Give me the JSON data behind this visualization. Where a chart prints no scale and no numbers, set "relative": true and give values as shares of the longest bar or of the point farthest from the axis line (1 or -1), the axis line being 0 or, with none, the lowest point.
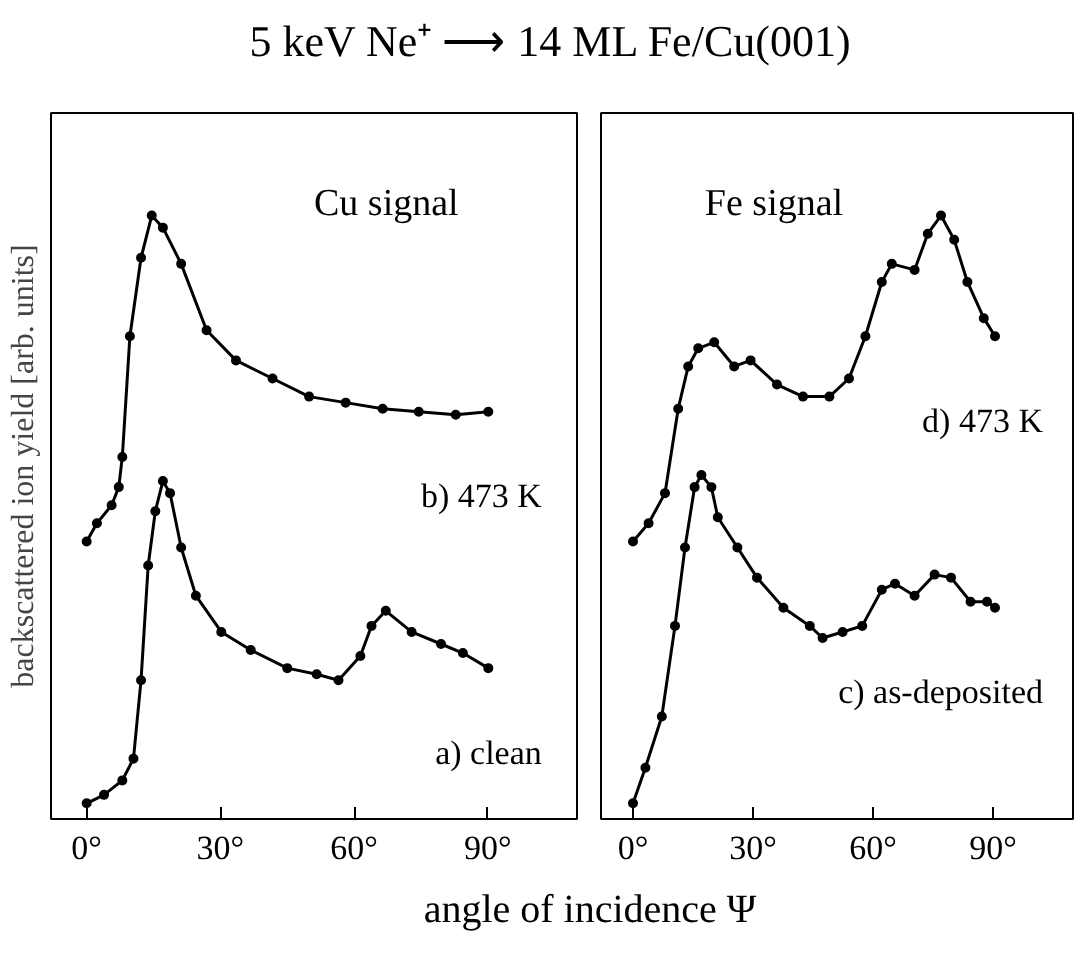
{
  "chart_data": [
    {
      "type": "line",
      "title": "5 keV Ne⁺ ⟶ 14 ML Fe/Cu(001)",
      "ylabel": "backscattered ion yield [arb. units]",
      "xlabel": "angle of incidence Ψ",
      "relative": true,
      "marker": "circle",
      "line_style": "solid",
      "tick_labels": "x",
      "grid": false,
      "annotations": [
        "Cu signal"
      ],
      "xlim": [
        -8,
        110
      ],
      "xticks": [
        {
          "value": 0,
          "label": "0°"
        },
        {
          "value": 30,
          "label": "30°"
        },
        {
          "value": 60,
          "label": "60°"
        },
        {
          "value": 90,
          "label": "90°"
        }
      ],
      "series": [
        {
          "name": "b) 473 K",
          "color": "#000000",
          "x": [
            0,
            2.3,
            5.6,
            7.2,
            8,
            9.7,
            12.2,
            14.6,
            17.1,
            21.2,
            26.9,
            33.5,
            41.7,
            49.9,
            58.1,
            66.4,
            74.5,
            82.8,
            90.1
          ],
          "values": [
            0.46,
            0.49,
            0.52,
            0.55,
            0.6,
            0.8,
            0.93,
            1.0,
            0.98,
            0.92,
            0.81,
            0.76,
            0.73,
            0.7,
            0.69,
            0.68,
            0.675,
            0.67,
            0.675
          ]
        },
        {
          "name": "a) clean",
          "color": "#000000",
          "x": [
            0,
            3.9,
            8,
            10.5,
            12.2,
            13.8,
            15.4,
            17.1,
            18.7,
            21.2,
            24.5,
            30.2,
            36.8,
            45,
            51.6,
            56.5,
            61.4,
            63.9,
            67.1,
            72.9,
            79.5,
            84.4,
            90.1
          ],
          "values": [
            0.026,
            0.04,
            0.064,
            0.1,
            0.23,
            0.42,
            0.51,
            0.56,
            0.54,
            0.45,
            0.37,
            0.31,
            0.28,
            0.25,
            0.24,
            0.23,
            0.27,
            0.32,
            0.345,
            0.31,
            0.29,
            0.275,
            0.25
          ]
        }
      ]
    },
    {
      "type": "line",
      "relative": true,
      "marker": "circle",
      "line_style": "solid",
      "tick_labels": "x",
      "grid": false,
      "annotations": [
        "Fe signal"
      ],
      "xlim": [
        -8,
        110
      ],
      "xticks": [
        {
          "value": 0,
          "label": "0°"
        },
        {
          "value": 30,
          "label": "30°"
        },
        {
          "value": 60,
          "label": "60°"
        },
        {
          "value": 90,
          "label": "90°"
        }
      ],
      "series": [
        {
          "name": "d) 473 K",
          "color": "#000000",
          "x": [
            0,
            3.9,
            8,
            11.3,
            13.8,
            16.3,
            20.3,
            25.3,
            29.4,
            36,
            42.5,
            49.1,
            54,
            58.1,
            62.2,
            64.7,
            70.4,
            73.7,
            77,
            80.3,
            83.6,
            87.7,
            90.5
          ],
          "values": [
            0.46,
            0.49,
            0.54,
            0.68,
            0.75,
            0.78,
            0.79,
            0.75,
            0.76,
            0.72,
            0.7,
            0.7,
            0.73,
            0.8,
            0.89,
            0.92,
            0.91,
            0.97,
            1.0,
            0.96,
            0.89,
            0.83,
            0.8
          ]
        },
        {
          "name": "c) as-deposited",
          "color": "#000000",
          "x": [
            0,
            3.1,
            7.2,
            10.5,
            13,
            15.4,
            17.1,
            19.6,
            21.2,
            26.1,
            31,
            37.6,
            44.2,
            47.4,
            52.4,
            57.3,
            62.2,
            65.5,
            70.4,
            75.4,
            79.5,
            84.4,
            88.5,
            90.5
          ],
          "values": [
            0.026,
            0.085,
            0.17,
            0.32,
            0.45,
            0.55,
            0.57,
            0.55,
            0.5,
            0.45,
            0.4,
            0.35,
            0.32,
            0.3,
            0.31,
            0.32,
            0.38,
            0.39,
            0.37,
            0.405,
            0.4,
            0.36,
            0.36,
            0.35
          ]
        }
      ]
    }
  ]
}
